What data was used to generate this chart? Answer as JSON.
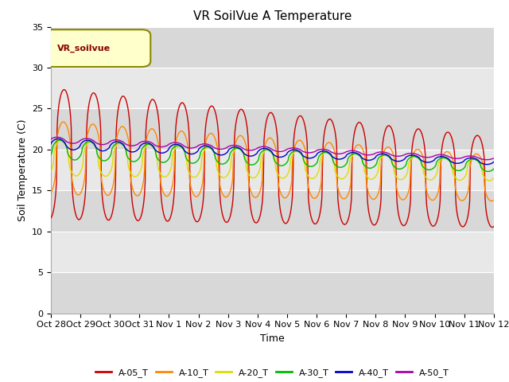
{
  "title": "VR SoilVue A Temperature",
  "xlabel": "Time",
  "ylabel": "Soil Temperature (C)",
  "ylim": [
    0,
    35
  ],
  "yticks": [
    0,
    5,
    10,
    15,
    20,
    25,
    30,
    35
  ],
  "x_tick_labels": [
    "Oct 28",
    "Oct 29",
    "Oct 30",
    "Oct 31",
    "Nov 1",
    "Nov 2",
    "Nov 3",
    "Nov 4",
    "Nov 5",
    "Nov 6",
    "Nov 7",
    "Nov 8",
    "Nov 9",
    "Nov 10",
    "Nov 11",
    "Nov 12"
  ],
  "legend_label": "VR_soilvue",
  "series_colors": {
    "A-05_T": "#cc0000",
    "A-10_T": "#ff8800",
    "A-20_T": "#dddd00",
    "A-30_T": "#00bb00",
    "A-40_T": "#0000cc",
    "A-50_T": "#aa00aa"
  },
  "bg_color": "#e8e8e8",
  "plot_bg_color": "#dcdcdc",
  "legend_box_color": "#ffffcc",
  "legend_box_edge": "#888800",
  "title_fontsize": 11,
  "axis_label_fontsize": 9,
  "tick_fontsize": 8
}
